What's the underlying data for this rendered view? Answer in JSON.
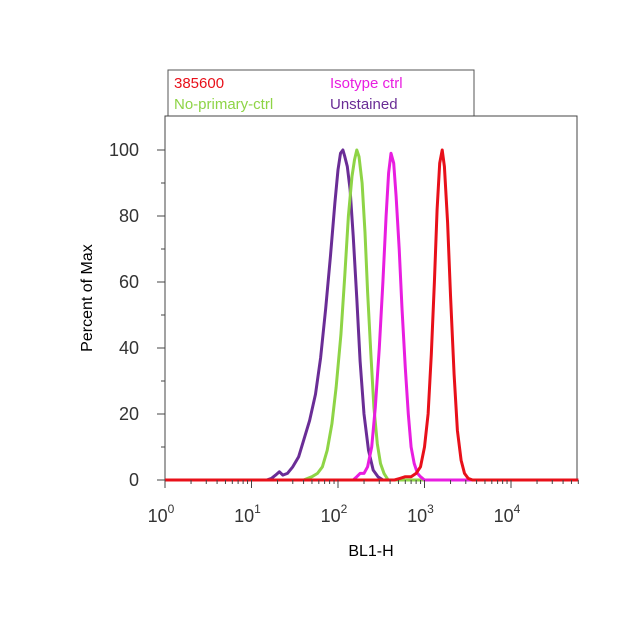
{
  "chart_data": {
    "type": "line",
    "xlabel": "BL1-H",
    "ylabel": "Percent of Max",
    "x_scale": "log",
    "xlim": [
      1,
      60000
    ],
    "ylim": [
      0,
      110
    ],
    "x_ticks": [
      {
        "base": "10",
        "exp": "0",
        "value": 1
      },
      {
        "base": "10",
        "exp": "1",
        "value": 10
      },
      {
        "base": "10",
        "exp": "2",
        "value": 100
      },
      {
        "base": "10",
        "exp": "3",
        "value": 1000
      },
      {
        "base": "10",
        "exp": "4",
        "value": 10000
      }
    ],
    "y_ticks": [
      "0",
      "20",
      "40",
      "60",
      "80",
      "100"
    ],
    "y_tick_values": [
      0,
      20,
      40,
      60,
      80,
      100
    ],
    "legend": {
      "position": "top",
      "entries": [
        {
          "label": "385600",
          "color": "#e8101a"
        },
        {
          "label": "Isotype ctrl",
          "color": "#e81ee0"
        },
        {
          "label": "No-primary-ctrl",
          "color": "#8ed446"
        },
        {
          "label": "Unstained",
          "color": "#6a2d96"
        }
      ]
    },
    "series": [
      {
        "color": "#6a2d96",
        "x": [
          1,
          15,
          17,
          19,
          21,
          23,
          26,
          30,
          35,
          40,
          47,
          55,
          63,
          72,
          82,
          92,
          100,
          107,
          114,
          120,
          128,
          138,
          150,
          165,
          180,
          200,
          225,
          255,
          290,
          330,
          60000
        ],
        "y": [
          0,
          0,
          0.5,
          1.5,
          2.5,
          1.5,
          2,
          4,
          7,
          12,
          18,
          26,
          37,
          52,
          68,
          84,
          94,
          99,
          100,
          98,
          95,
          88,
          74,
          55,
          36,
          20,
          9,
          3,
          1,
          0,
          0
        ]
      },
      {
        "color": "#8ed446",
        "x": [
          1,
          40,
          50,
          58,
          66,
          75,
          85,
          95,
          108,
          120,
          132,
          145,
          155,
          165,
          175,
          190,
          205,
          220,
          240,
          260,
          285,
          310,
          340,
          380,
          60000
        ],
        "y": [
          0,
          0,
          1,
          2,
          4,
          9,
          17,
          28,
          44,
          62,
          80,
          92,
          97,
          100,
          98,
          90,
          75,
          57,
          38,
          22,
          11,
          5,
          2,
          0,
          0
        ]
      },
      {
        "color": "#e81ee0",
        "x": [
          1,
          150,
          165,
          180,
          200,
          220,
          245,
          270,
          300,
          330,
          360,
          385,
          410,
          440,
          470,
          510,
          550,
          600,
          650,
          700,
          760,
          830,
          900,
          1000,
          60000
        ],
        "y": [
          0,
          0,
          1,
          2,
          2,
          4,
          10,
          22,
          40,
          60,
          80,
          93,
          99,
          96,
          86,
          70,
          52,
          34,
          20,
          10,
          5,
          2,
          1,
          0,
          0
        ]
      },
      {
        "color": "#e8101a",
        "x": [
          1,
          450,
          520,
          600,
          700,
          800,
          900,
          1000,
          1100,
          1200,
          1300,
          1400,
          1500,
          1600,
          1700,
          1850,
          2000,
          2200,
          2400,
          2650,
          2900,
          3200,
          3600,
          60000
        ],
        "y": [
          0,
          0,
          0.5,
          1,
          1,
          2,
          4,
          10,
          20,
          38,
          60,
          82,
          96,
          100,
          95,
          78,
          56,
          32,
          15,
          6,
          2,
          0.5,
          0,
          0
        ]
      }
    ]
  }
}
